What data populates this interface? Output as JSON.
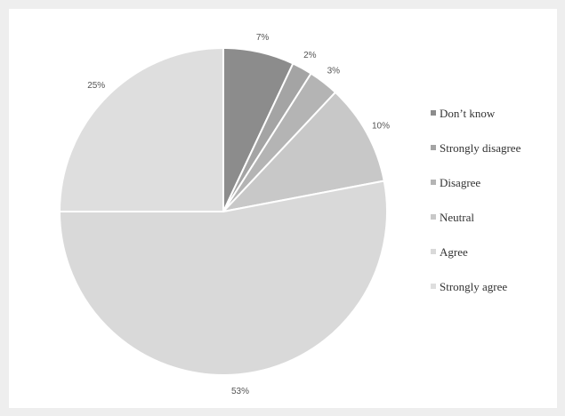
{
  "chart_data": {
    "type": "pie",
    "categories": [
      "Don’t know",
      "Strongly disagree",
      "Disagree",
      "Neutral",
      "Agree",
      "Strongly agree"
    ],
    "values": [
      7,
      2,
      3,
      10,
      53,
      25
    ],
    "data_labels": [
      "7%",
      "2%",
      "3%",
      "10%",
      "53%",
      "25%"
    ],
    "colors": [
      "#8c8c8c",
      "#a4a4a4",
      "#b4b4b4",
      "#c8c8c8",
      "#d9d9d9",
      "#dedede"
    ],
    "legend_position": "right"
  }
}
